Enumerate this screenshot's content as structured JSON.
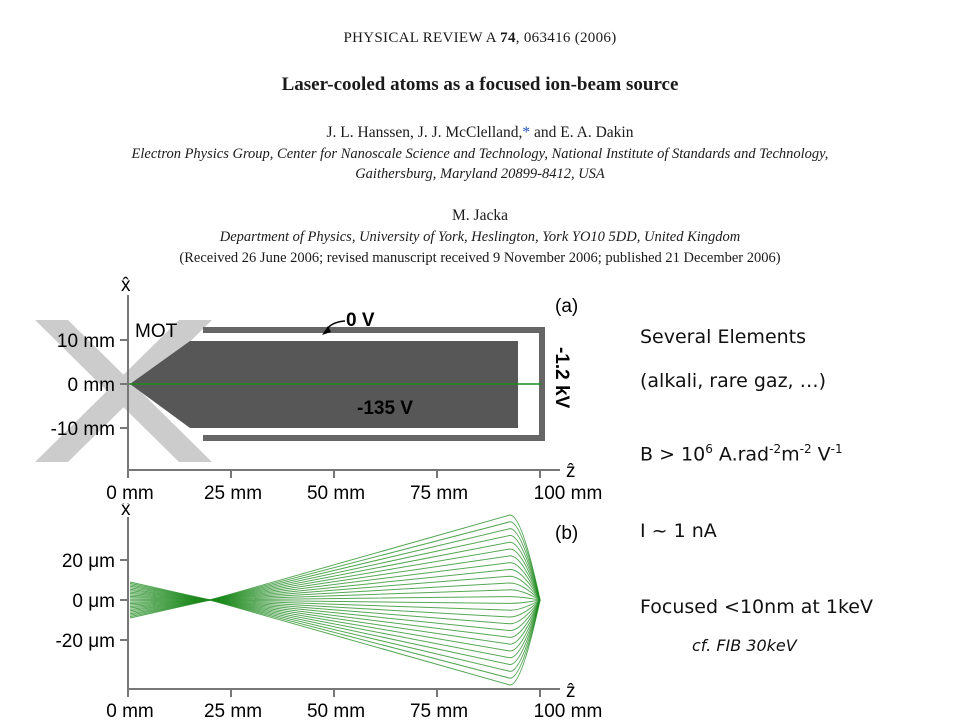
{
  "paper": {
    "journal_name": "PHYSICAL REVIEW A",
    "volume": "74",
    "article": ", 063416 (2006)",
    "title": "Laser-cooled atoms as a focused ion-beam source",
    "authors_line1_a": "J. L. Hanssen, J. J. McClelland,",
    "authors_line1_star": "*",
    "authors_line1_b": " and E. A. Dakin",
    "affiliation1_line1": "Electron Physics Group, Center for Nanoscale Science and Technology, National Institute of Standards and Technology,",
    "affiliation1_line2": "Gaithersburg, Maryland 20899-8412, USA",
    "authors_line2": "M. Jacka",
    "affiliation2": "Department of Physics, University of York, Heslington, York YO10 5DD, United Kingdom",
    "received": "(Received 26 June 2006; revised manuscript received 9 November 2006; published 21 December 2006)"
  },
  "figure_a": {
    "panel_label": "(a)",
    "axis_x_label": "x̂",
    "axis_z_label": "ẑ",
    "y_ticks": [
      "10 mm",
      "0 mm",
      "-10 mm"
    ],
    "x_ticks": [
      "0 mm",
      "25 mm",
      "50 mm",
      "75 mm",
      "100 mm"
    ],
    "mot_label": "MOT",
    "ground_label": "0 V",
    "electrode_label": "-135 V",
    "side_label": "-1.2 kV"
  },
  "figure_b": {
    "panel_label": "(b)",
    "axis_x_label": "x̂",
    "axis_z_label": "ẑ",
    "y_ticks": [
      "20 μm",
      "0 μm",
      "-20 μm"
    ],
    "x_ticks": [
      "0 mm",
      "25 mm",
      "50 mm",
      "75 mm",
      "100 mm"
    ],
    "colors": {
      "trajectory": "#1e8a1e"
    }
  },
  "slide_text": {
    "line1": "Several Elements",
    "line2": "(alkali, rare gaz, …)",
    "brightness_prefix": "B > 10",
    "brightness_exp1": "6",
    "brightness_unit1": " A.rad",
    "brightness_exp2": "-2",
    "brightness_unit2": "m",
    "brightness_exp3": "-2",
    "brightness_unit3": " V",
    "brightness_exp4": "-1",
    "current": "I ~ 1 nA",
    "focus": "Focused <10nm at 1keV",
    "comparison": "cf. FIB 30keV"
  }
}
